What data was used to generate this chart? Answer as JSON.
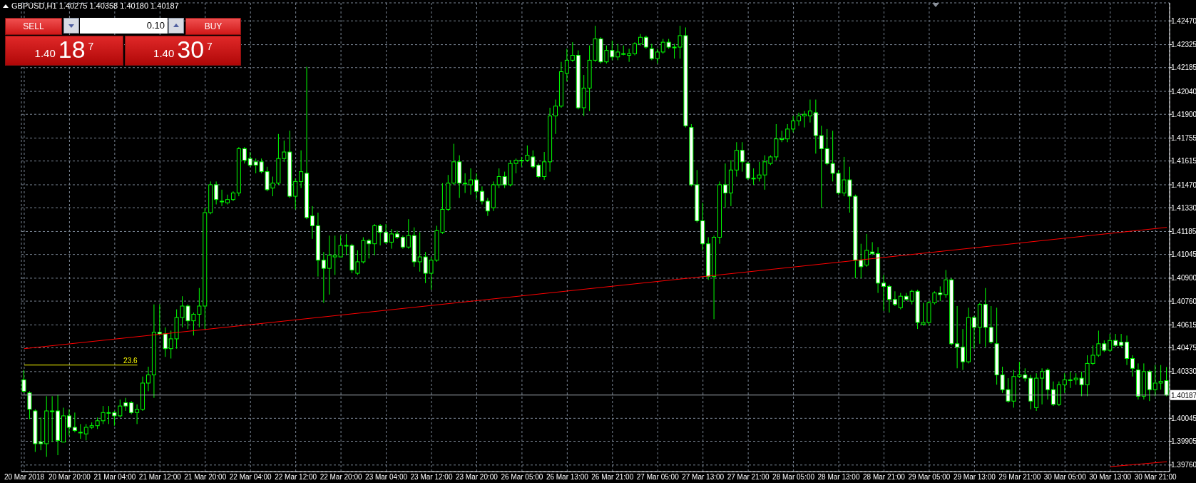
{
  "chart_data": {
    "type": "candlestick",
    "title": "GBPUSD,H1 1.40275 1.40358 1.40180 1.40187",
    "color": "#00ff00",
    "grid": true,
    "categories": [
      "20 Mar 2018",
      null,
      null,
      null,
      null,
      null,
      null,
      null,
      "20 Mar 20:00",
      null,
      null,
      null,
      null,
      null,
      null,
      null,
      "21 Mar 04:00",
      null,
      null,
      null,
      null,
      null,
      null,
      null,
      "21 Mar 12:00",
      null,
      null,
      null,
      null,
      null,
      null,
      null,
      "21 Mar 20:00",
      null,
      null,
      null,
      null,
      null,
      null,
      null,
      "22 Mar 04:00",
      null,
      null,
      null,
      null,
      null,
      null,
      null,
      "22 Mar 12:00",
      null,
      null,
      null,
      null,
      null,
      null,
      null,
      "22 Mar 20:00",
      null,
      null,
      null,
      null,
      null,
      null,
      null,
      "23 Mar 04:00",
      null,
      null,
      null,
      null,
      null,
      null,
      null,
      "23 Mar 12:00",
      null,
      null,
      null,
      null,
      null,
      null,
      null,
      "23 Mar 20:00",
      null,
      null,
      null,
      null,
      null,
      null,
      null,
      "26 Mar 05:00",
      null,
      null,
      null,
      null,
      null,
      null,
      null,
      "26 Mar 13:00",
      null,
      null,
      null,
      null,
      null,
      null,
      null,
      "26 Mar 21:00",
      null,
      null,
      null,
      null,
      null,
      null,
      null,
      "27 Mar 05:00",
      null,
      null,
      null,
      null,
      null,
      null,
      null,
      "27 Mar 13:00",
      null,
      null,
      null,
      null,
      null,
      null,
      null,
      "27 Mar 21:00",
      null,
      null,
      null,
      null,
      null,
      null,
      null,
      "28 Mar 05:00",
      null,
      null,
      null,
      null,
      null,
      null,
      null,
      "28 Mar 13:00",
      null,
      null,
      null,
      null,
      null,
      null,
      null,
      "28 Mar 21:00",
      null,
      null,
      null,
      null,
      null,
      null,
      null,
      "29 Mar 05:00",
      null,
      null,
      null,
      null,
      null,
      null,
      null,
      "29 Mar 13:00",
      null,
      null,
      null,
      null,
      null,
      null,
      null,
      "29 Mar 21:00",
      null,
      null,
      null,
      null,
      null,
      null,
      null,
      "30 Mar 05:00",
      null,
      null,
      null,
      null,
      null,
      null,
      null,
      "30 Mar 13:00",
      null,
      null,
      null,
      null,
      null,
      null,
      null,
      "30 Mar 21:00",
      null,
      null
    ],
    "ohlc": [
      [
        1.4028,
        1.4034,
        1.402,
        1.4021
      ],
      [
        1.402,
        1.4021,
        1.4004,
        1.401
      ],
      [
        1.4009,
        1.401,
        1.3984,
        1.3989
      ],
      [
        1.399,
        1.4005,
        1.3985,
        1.3989
      ],
      [
        1.3989,
        1.4018,
        1.3981,
        1.4009
      ],
      [
        1.4009,
        1.4018,
        1.399,
        1.4009
      ],
      [
        1.4009,
        1.4019,
        1.3982,
        1.3991
      ],
      [
        1.399,
        1.4011,
        1.399,
        1.4006
      ],
      [
        1.4006,
        1.401,
        1.3994,
        1.3999
      ],
      [
        1.3999,
        1.4008,
        1.3996,
        1.3997
      ],
      [
        1.3996,
        1.4001,
        1.3992,
        1.3996
      ],
      [
        1.3995,
        1.4001,
        1.3991,
        1.3999
      ],
      [
        1.3999,
        1.4002,
        1.3998,
        1.4
      ],
      [
        1.4,
        1.4005,
        1.3998,
        1.4003
      ],
      [
        1.4003,
        1.4012,
        1.4001,
        1.4008
      ],
      [
        1.4008,
        1.4012,
        1.4001,
        1.4008
      ],
      [
        1.4008,
        1.4009,
        1.4,
        1.4006
      ],
      [
        1.4006,
        1.4016,
        1.4005,
        1.4012
      ],
      [
        1.4014,
        1.4017,
        1.4009,
        1.4012
      ],
      [
        1.4014,
        1.4015,
        1.4007,
        1.4008
      ],
      [
        1.4008,
        1.4013,
        1.4001,
        1.401
      ],
      [
        1.401,
        1.403,
        1.4009,
        1.4026
      ],
      [
        1.4026,
        1.4036,
        1.4021,
        1.4031
      ],
      [
        1.4031,
        1.4074,
        1.4017,
        1.4057
      ],
      [
        1.4057,
        1.4074,
        1.4055,
        1.4056
      ],
      [
        1.4056,
        1.406,
        1.4042,
        1.4047
      ],
      [
        1.4047,
        1.4058,
        1.4041,
        1.4053
      ],
      [
        1.4053,
        1.4071,
        1.4047,
        1.4066
      ],
      [
        1.4066,
        1.4079,
        1.406,
        1.4073
      ],
      [
        1.4073,
        1.4074,
        1.4059,
        1.4064
      ],
      [
        1.4064,
        1.4069,
        1.4055,
        1.4068
      ],
      [
        1.4068,
        1.4084,
        1.406,
        1.4073
      ],
      [
        1.4073,
        1.4133,
        1.4059,
        1.413
      ],
      [
        1.413,
        1.4149,
        1.4129,
        1.4147
      ],
      [
        1.4147,
        1.4149,
        1.4135,
        1.4138
      ],
      [
        1.4137,
        1.4144,
        1.4134,
        1.4137
      ],
      [
        1.4136,
        1.4141,
        1.4135,
        1.4138
      ],
      [
        1.4138,
        1.4143,
        1.4137,
        1.4142
      ],
      [
        1.4142,
        1.417,
        1.414,
        1.4169
      ],
      [
        1.4169,
        1.417,
        1.416,
        1.4162
      ],
      [
        1.4163,
        1.4167,
        1.4158,
        1.4159
      ],
      [
        1.4161,
        1.4163,
        1.4154,
        1.4159
      ],
      [
        1.4161,
        1.4163,
        1.4154,
        1.4155
      ],
      [
        1.4155,
        1.4158,
        1.4143,
        1.4144
      ],
      [
        1.4145,
        1.4152,
        1.414,
        1.4148
      ],
      [
        1.4148,
        1.4178,
        1.4147,
        1.4163
      ],
      [
        1.4163,
        1.4174,
        1.4161,
        1.4167
      ],
      [
        1.4167,
        1.418,
        1.4139,
        1.414
      ],
      [
        1.414,
        1.4151,
        1.4132,
        1.4149
      ],
      [
        1.4149,
        1.4168,
        1.4145,
        1.4155
      ],
      [
        1.4154,
        1.4219,
        1.4126,
        1.4127
      ],
      [
        1.4128,
        1.4134,
        1.4114,
        1.4122
      ],
      [
        1.4122,
        1.413,
        1.4091,
        1.4101
      ],
      [
        1.4101,
        1.4106,
        1.4075,
        1.4096
      ],
      [
        1.4096,
        1.4116,
        1.408,
        1.4104
      ],
      [
        1.4103,
        1.4116,
        1.4092,
        1.4104
      ],
      [
        1.4103,
        1.4116,
        1.4103,
        1.411
      ],
      [
        1.411,
        1.4117,
        1.4104,
        1.411
      ],
      [
        1.411,
        1.4111,
        1.4093,
        1.4095
      ],
      [
        1.4093,
        1.4107,
        1.4092,
        1.41
      ],
      [
        1.41,
        1.4115,
        1.4099,
        1.4113
      ],
      [
        1.4113,
        1.4114,
        1.4102,
        1.4111
      ],
      [
        1.4111,
        1.4123,
        1.4104,
        1.4122
      ],
      [
        1.4122,
        1.4123,
        1.411,
        1.4118
      ],
      [
        1.4118,
        1.4123,
        1.4111,
        1.4112
      ],
      [
        1.4112,
        1.412,
        1.4108,
        1.4117
      ],
      [
        1.4117,
        1.4119,
        1.4114,
        1.4115
      ],
      [
        1.4115,
        1.4116,
        1.4108,
        1.4109
      ],
      [
        1.4109,
        1.4126,
        1.4108,
        1.4116
      ],
      [
        1.4116,
        1.4121,
        1.4097,
        1.41
      ],
      [
        1.41,
        1.4118,
        1.4094,
        1.4103
      ],
      [
        1.4103,
        1.4106,
        1.4087,
        1.4093
      ],
      [
        1.4093,
        1.4103,
        1.4083,
        1.4101
      ],
      [
        1.4101,
        1.4122,
        1.41,
        1.4119
      ],
      [
        1.4118,
        1.4148,
        1.4117,
        1.4132
      ],
      [
        1.4132,
        1.4153,
        1.4131,
        1.4148
      ],
      [
        1.4148,
        1.4172,
        1.4147,
        1.4161
      ],
      [
        1.4161,
        1.4165,
        1.4139,
        1.4148
      ],
      [
        1.4148,
        1.4154,
        1.4142,
        1.4148
      ],
      [
        1.4147,
        1.4157,
        1.4141,
        1.415
      ],
      [
        1.415,
        1.4154,
        1.4138,
        1.4143
      ],
      [
        1.4143,
        1.4146,
        1.4135,
        1.4137
      ],
      [
        1.4137,
        1.4139,
        1.4128,
        1.4131
      ],
      [
        1.4133,
        1.4149,
        1.4131,
        1.4147
      ],
      [
        1.4147,
        1.4157,
        1.4145,
        1.4152
      ],
      [
        1.4152,
        1.4155,
        1.4145,
        1.4147
      ],
      [
        1.4147,
        1.4162,
        1.4146,
        1.416
      ],
      [
        1.416,
        1.4163,
        1.4154,
        1.4162
      ],
      [
        1.4162,
        1.4164,
        1.4158,
        1.4162
      ],
      [
        1.4162,
        1.4171,
        1.4161,
        1.4165
      ],
      [
        1.4164,
        1.4168,
        1.4157,
        1.4158
      ],
      [
        1.4159,
        1.416,
        1.4151,
        1.4152
      ],
      [
        1.4152,
        1.4167,
        1.415,
        1.4161
      ],
      [
        1.4161,
        1.4194,
        1.4155,
        1.4189
      ],
      [
        1.4189,
        1.4199,
        1.4178,
        1.4195
      ],
      [
        1.4195,
        1.4222,
        1.4194,
        1.4216
      ],
      [
        1.4215,
        1.423,
        1.421,
        1.4223
      ],
      [
        1.4223,
        1.4234,
        1.4222,
        1.4226
      ],
      [
        1.4226,
        1.4229,
        1.4193,
        1.4194
      ],
      [
        1.4194,
        1.4214,
        1.4189,
        1.4206
      ],
      [
        1.4206,
        1.4232,
        1.4192,
        1.4223
      ],
      [
        1.4223,
        1.4244,
        1.4222,
        1.4236
      ],
      [
        1.4236,
        1.4237,
        1.4221,
        1.4222
      ],
      [
        1.4222,
        1.4232,
        1.4221,
        1.4229
      ],
      [
        1.4229,
        1.4235,
        1.4223,
        1.4225
      ],
      [
        1.4225,
        1.4233,
        1.4223,
        1.4228
      ],
      [
        1.4227,
        1.4232,
        1.4226,
        1.4227
      ],
      [
        1.4226,
        1.423,
        1.4222,
        1.4227
      ],
      [
        1.4227,
        1.4234,
        1.4226,
        1.4233
      ],
      [
        1.4233,
        1.4239,
        1.4232,
        1.4237
      ],
      [
        1.4237,
        1.4238,
        1.423,
        1.4231
      ],
      [
        1.423,
        1.4233,
        1.4223,
        1.4224
      ],
      [
        1.4224,
        1.423,
        1.4221,
        1.4228
      ],
      [
        1.4228,
        1.4236,
        1.4227,
        1.4234
      ],
      [
        1.4234,
        1.4236,
        1.423,
        1.4231
      ],
      [
        1.4231,
        1.4233,
        1.4224,
        1.4231
      ],
      [
        1.4231,
        1.4244,
        1.4224,
        1.4238
      ],
      [
        1.4238,
        1.4243,
        1.4182,
        1.4183
      ],
      [
        1.4182,
        1.4184,
        1.4146,
        1.4147
      ],
      [
        1.4147,
        1.4156,
        1.4124,
        1.4125
      ],
      [
        1.4125,
        1.4136,
        1.4107,
        1.4111
      ],
      [
        1.4111,
        1.4115,
        1.4089,
        1.4091
      ],
      [
        1.4091,
        1.4116,
        1.4065,
        1.4115
      ],
      [
        1.4115,
        1.4149,
        1.4111,
        1.4147
      ],
      [
        1.4147,
        1.416,
        1.4133,
        1.4142
      ],
      [
        1.4142,
        1.4162,
        1.4134,
        1.4156
      ],
      [
        1.4156,
        1.4173,
        1.4152,
        1.4168
      ],
      [
        1.4168,
        1.4173,
        1.4155,
        1.4161
      ],
      [
        1.416,
        1.4161,
        1.415,
        1.4151
      ],
      [
        1.4151,
        1.4157,
        1.4147,
        1.4151
      ],
      [
        1.4151,
        1.4161,
        1.4149,
        1.4153
      ],
      [
        1.4153,
        1.4165,
        1.4144,
        1.4161
      ],
      [
        1.416,
        1.4165,
        1.4159,
        1.4164
      ],
      [
        1.4164,
        1.4184,
        1.4162,
        1.4175
      ],
      [
        1.4175,
        1.418,
        1.4173,
        1.4175
      ],
      [
        1.4175,
        1.4184,
        1.4173,
        1.4181
      ],
      [
        1.4181,
        1.4189,
        1.4179,
        1.4186
      ],
      [
        1.4186,
        1.4191,
        1.4183,
        1.4189
      ],
      [
        1.4189,
        1.4192,
        1.4182,
        1.419
      ],
      [
        1.4189,
        1.4199,
        1.4185,
        1.4192
      ],
      [
        1.4191,
        1.4199,
        1.4166,
        1.4177
      ],
      [
        1.4177,
        1.4183,
        1.4133,
        1.4169
      ],
      [
        1.4169,
        1.4181,
        1.4159,
        1.416
      ],
      [
        1.416,
        1.418,
        1.4149,
        1.4154
      ],
      [
        1.4154,
        1.4156,
        1.4141,
        1.4142
      ],
      [
        1.4142,
        1.4164,
        1.414,
        1.415
      ],
      [
        1.415,
        1.4158,
        1.413,
        1.414
      ],
      [
        1.414,
        1.4141,
        1.409,
        1.4101
      ],
      [
        1.4101,
        1.4111,
        1.409,
        1.4097
      ],
      [
        1.4098,
        1.4117,
        1.4097,
        1.4107
      ],
      [
        1.4106,
        1.4112,
        1.4104,
        1.4105
      ],
      [
        1.4105,
        1.4109,
        1.4081,
        1.4087
      ],
      [
        1.4087,
        1.4092,
        1.407,
        1.4085
      ],
      [
        1.4085,
        1.4086,
        1.4069,
        1.4077
      ],
      [
        1.4077,
        1.4082,
        1.4073,
        1.4074
      ],
      [
        1.4072,
        1.4081,
        1.4071,
        1.4079
      ],
      [
        1.4079,
        1.4081,
        1.4076,
        1.4077
      ],
      [
        1.4076,
        1.4083,
        1.4074,
        1.4082
      ],
      [
        1.4082,
        1.4083,
        1.4059,
        1.4063
      ],
      [
        1.4062,
        1.4075,
        1.4061,
        1.4063
      ],
      [
        1.4063,
        1.4076,
        1.4061,
        1.4075
      ],
      [
        1.4075,
        1.4082,
        1.4074,
        1.4081
      ],
      [
        1.4081,
        1.4085,
        1.4076,
        1.408
      ],
      [
        1.408,
        1.4095,
        1.4078,
        1.4089
      ],
      [
        1.4089,
        1.409,
        1.4049,
        1.405
      ],
      [
        1.405,
        1.4073,
        1.4035,
        1.4048
      ],
      [
        1.4048,
        1.4059,
        1.4034,
        1.4039
      ],
      [
        1.4039,
        1.4072,
        1.4038,
        1.4066
      ],
      [
        1.4066,
        1.4067,
        1.4047,
        1.406
      ],
      [
        1.406,
        1.4075,
        1.405,
        1.4074
      ],
      [
        1.4074,
        1.4084,
        1.4048,
        1.406
      ],
      [
        1.406,
        1.4073,
        1.405,
        1.4051
      ],
      [
        1.405,
        1.4072,
        1.4025,
        1.4031
      ],
      [
        1.4031,
        1.4036,
        1.402,
        1.4022
      ],
      [
        1.4022,
        1.4029,
        1.4014,
        1.4015
      ],
      [
        1.4015,
        1.4034,
        1.4011,
        1.403
      ],
      [
        1.403,
        1.4039,
        1.4029,
        1.4031
      ],
      [
        1.4031,
        1.4035,
        1.4027,
        1.4029
      ],
      [
        1.4029,
        1.4031,
        1.401,
        1.4015
      ],
      [
        1.4011,
        1.4032,
        1.4009,
        1.4029
      ],
      [
        1.4029,
        1.4035,
        1.4013,
        1.4033
      ],
      [
        1.4034,
        1.4035,
        1.4016,
        1.4022
      ],
      [
        1.4022,
        1.4027,
        1.4012,
        1.4013
      ],
      [
        1.4013,
        1.4027,
        1.4012,
        1.4025
      ],
      [
        1.4025,
        1.4032,
        1.402,
        1.4028
      ],
      [
        1.4028,
        1.4033,
        1.4023,
        1.4028
      ],
      [
        1.4028,
        1.4032,
        1.4025,
        1.4029
      ],
      [
        1.4029,
        1.4033,
        1.4018,
        1.4025
      ],
      [
        1.4025,
        1.4043,
        1.4018,
        1.4038
      ],
      [
        1.4038,
        1.4049,
        1.4037,
        1.4043
      ],
      [
        1.4043,
        1.4058,
        1.4042,
        1.405
      ],
      [
        1.405,
        1.4052,
        1.4045,
        1.4046
      ],
      [
        1.4046,
        1.4056,
        1.4045,
        1.4052
      ],
      [
        1.4052,
        1.4056,
        1.4048,
        1.4049
      ],
      [
        1.4051,
        1.4056,
        1.4048,
        1.4049
      ],
      [
        1.4051,
        1.4055,
        1.4037,
        1.4041
      ],
      [
        1.4041,
        1.4043,
        1.403,
        1.4035
      ],
      [
        1.4034,
        1.4038,
        1.4016,
        1.4018
      ],
      [
        1.4018,
        1.4038,
        1.4016,
        1.4033
      ],
      [
        1.4033,
        1.4034,
        1.4015,
        1.4022
      ],
      [
        1.4022,
        1.4037,
        1.4018,
        1.4026
      ],
      [
        1.4026,
        1.4037,
        1.4022,
        1.4027
      ],
      [
        1.40275,
        1.40358,
        1.4018,
        1.40187
      ]
    ],
    "series": [
      {
        "type": "line",
        "color": "#ff0000",
        "values": [
          1.4047,
          null,
          null,
          null,
          null,
          null,
          null,
          null,
          null,
          null,
          null,
          null,
          null,
          null,
          null,
          null,
          null,
          null,
          null,
          null,
          null,
          null,
          null,
          null,
          null,
          null,
          null,
          null,
          null,
          null,
          null,
          null,
          null,
          null,
          null,
          null,
          null,
          null,
          null,
          null,
          null,
          null,
          null,
          null,
          null,
          null,
          null,
          null,
          null,
          null,
          null,
          null,
          null,
          null,
          null,
          null,
          null,
          null,
          null,
          null,
          null,
          null,
          null,
          null,
          null,
          null,
          null,
          null,
          null,
          null,
          null,
          null,
          null,
          null,
          null,
          null,
          null,
          null,
          null,
          null,
          null,
          null,
          null,
          null,
          null,
          null,
          null,
          null,
          null,
          null,
          null,
          null,
          null,
          null,
          null,
          null,
          null,
          null,
          null,
          null,
          null,
          null,
          null,
          null,
          null,
          null,
          null,
          null,
          null,
          null,
          null,
          null,
          null,
          null,
          null,
          null,
          null,
          null,
          null,
          null,
          null,
          null,
          null,
          null,
          null,
          null,
          null,
          null,
          null,
          null,
          null,
          null,
          null,
          null,
          null,
          null,
          null,
          null,
          null,
          null,
          null,
          null,
          null,
          null,
          null,
          null,
          null,
          null,
          null,
          null,
          null,
          null,
          null,
          null,
          null,
          null,
          null,
          null,
          null,
          null,
          null,
          null,
          null,
          null,
          null,
          null,
          null,
          null,
          null,
          null,
          null,
          null,
          null,
          null,
          null,
          null,
          null,
          null,
          null,
          null,
          null,
          null,
          null,
          null,
          null,
          null,
          null,
          null,
          null,
          null,
          null,
          null,
          null,
          null,
          null,
          null,
          null,
          null,
          null,
          null,
          null,
          null,
          1.4121
        ]
      },
      {
        "type": "line",
        "color": "#ff0000",
        "values": [
          null,
          null,
          null,
          null,
          null,
          null,
          null,
          null,
          null,
          null,
          null,
          null,
          null,
          null,
          null,
          null,
          null,
          null,
          null,
          null,
          null,
          null,
          null,
          null,
          null,
          null,
          null,
          null,
          null,
          null,
          null,
          null,
          null,
          null,
          null,
          null,
          null,
          null,
          null,
          null,
          null,
          null,
          null,
          null,
          null,
          null,
          null,
          null,
          null,
          null,
          null,
          null,
          null,
          null,
          null,
          null,
          null,
          null,
          null,
          null,
          null,
          null,
          null,
          null,
          null,
          null,
          null,
          null,
          null,
          null,
          null,
          null,
          null,
          null,
          null,
          null,
          null,
          null,
          null,
          null,
          null,
          null,
          null,
          null,
          null,
          null,
          null,
          null,
          null,
          null,
          null,
          null,
          null,
          null,
          null,
          null,
          null,
          null,
          null,
          null,
          null,
          null,
          null,
          null,
          null,
          null,
          null,
          null,
          null,
          null,
          null,
          null,
          null,
          null,
          null,
          null,
          null,
          null,
          null,
          null,
          null,
          null,
          null,
          null,
          null,
          null,
          null,
          null,
          null,
          null,
          null,
          null,
          null,
          null,
          null,
          null,
          null,
          null,
          null,
          null,
          null,
          null,
          null,
          null,
          null,
          null,
          null,
          null,
          null,
          null,
          null,
          null,
          null,
          null,
          null,
          null,
          null,
          null,
          null,
          null,
          null,
          null,
          null,
          null,
          null,
          null,
          null,
          null,
          null,
          null,
          null,
          null,
          null,
          null,
          null,
          null,
          null,
          null,
          null,
          null,
          null,
          null,
          null,
          null,
          null,
          null,
          null,
          null,
          null,
          null,
          null,
          null,
          1.3975,
          null,
          null,
          null,
          null,
          null,
          null,
          null,
          null,
          null,
          1.3978
        ]
      },
      {
        "type": "line",
        "name": "23.6",
        "color": "#ffff00",
        "values": [
          1.4037,
          null,
          null,
          null,
          null,
          null,
          null,
          null,
          null,
          null,
          null,
          null,
          null,
          null,
          null,
          null,
          null,
          null,
          null,
          null,
          1.4037,
          null,
          null,
          null,
          null,
          null,
          null,
          null,
          null,
          null,
          null,
          null,
          null,
          null,
          null,
          null,
          null,
          null,
          null,
          null,
          null,
          null,
          null,
          null,
          null,
          null,
          null,
          null,
          null,
          null,
          null,
          null,
          null,
          null,
          null,
          null,
          null,
          null,
          null,
          null,
          null,
          null,
          null,
          null,
          null,
          null,
          null,
          null,
          null,
          null,
          null,
          null,
          null,
          null,
          null,
          null,
          null,
          null,
          null,
          null,
          null,
          null,
          null,
          null,
          null,
          null,
          null,
          null,
          null,
          null,
          null,
          null,
          null,
          null,
          null,
          null,
          null,
          null,
          null,
          null,
          null,
          null,
          null,
          null,
          null,
          null,
          null,
          null,
          null,
          null,
          null,
          null,
          null,
          null,
          null,
          null,
          null,
          null,
          null,
          null,
          null,
          null,
          null,
          null,
          null,
          null,
          null,
          null,
          null,
          null,
          null,
          null,
          null,
          null,
          null,
          null,
          null,
          null,
          null,
          null,
          null,
          null,
          null,
          null,
          null,
          null,
          null,
          null,
          null,
          null,
          null,
          null,
          null,
          null,
          null,
          null,
          null,
          null,
          null,
          null,
          null,
          null,
          null,
          null,
          null,
          null,
          null,
          null,
          null,
          null,
          null,
          null,
          null,
          null,
          null,
          null,
          null,
          null,
          null,
          null,
          null,
          null,
          null,
          null,
          null,
          null,
          null,
          null,
          null,
          null,
          null,
          null,
          null,
          null,
          null,
          null,
          null,
          null,
          null,
          null,
          null,
          null,
          null
        ]
      }
    ],
    "ylim": [
      1.3972,
      1.4258
    ],
    "yticks": [
      {
        "value": 1.3976,
        "label": "1.39760"
      },
      {
        "value": 1.39905,
        "label": "1.39905"
      },
      {
        "value": 1.40045,
        "label": "1.40045"
      },
      {
        "value": 1.4033,
        "label": "1.40330"
      },
      {
        "value": 1.40475,
        "label": "1.40475"
      },
      {
        "value": 1.40615,
        "label": "1.40615"
      },
      {
        "value": 1.4076,
        "label": "1.40760"
      },
      {
        "value": 1.409,
        "label": "1.40900"
      },
      {
        "value": 1.41045,
        "label": "1.41045"
      },
      {
        "value": 1.41185,
        "label": "1.41185"
      },
      {
        "value": 1.4133,
        "label": "1.41330"
      },
      {
        "value": 1.4147,
        "label": "1.41470"
      },
      {
        "value": 1.41615,
        "label": "1.41615"
      },
      {
        "value": 1.41755,
        "label": "1.41755"
      },
      {
        "value": 1.419,
        "label": "1.41900"
      },
      {
        "value": 1.4204,
        "label": "1.42040"
      },
      {
        "value": 1.42185,
        "label": "1.42185"
      },
      {
        "value": 1.42325,
        "label": "1.42325"
      },
      {
        "value": 1.4247,
        "label": "1.42470"
      }
    ],
    "ref_lines": [
      {
        "axis": "y",
        "value": 1.40187,
        "label": "1.40187",
        "color": "#a0a8b0"
      }
    ],
    "annotations": [
      "SELL",
      "0.10",
      "BUY",
      "1.40",
      "18",
      "7",
      "1.40",
      "30",
      "7"
    ]
  }
}
